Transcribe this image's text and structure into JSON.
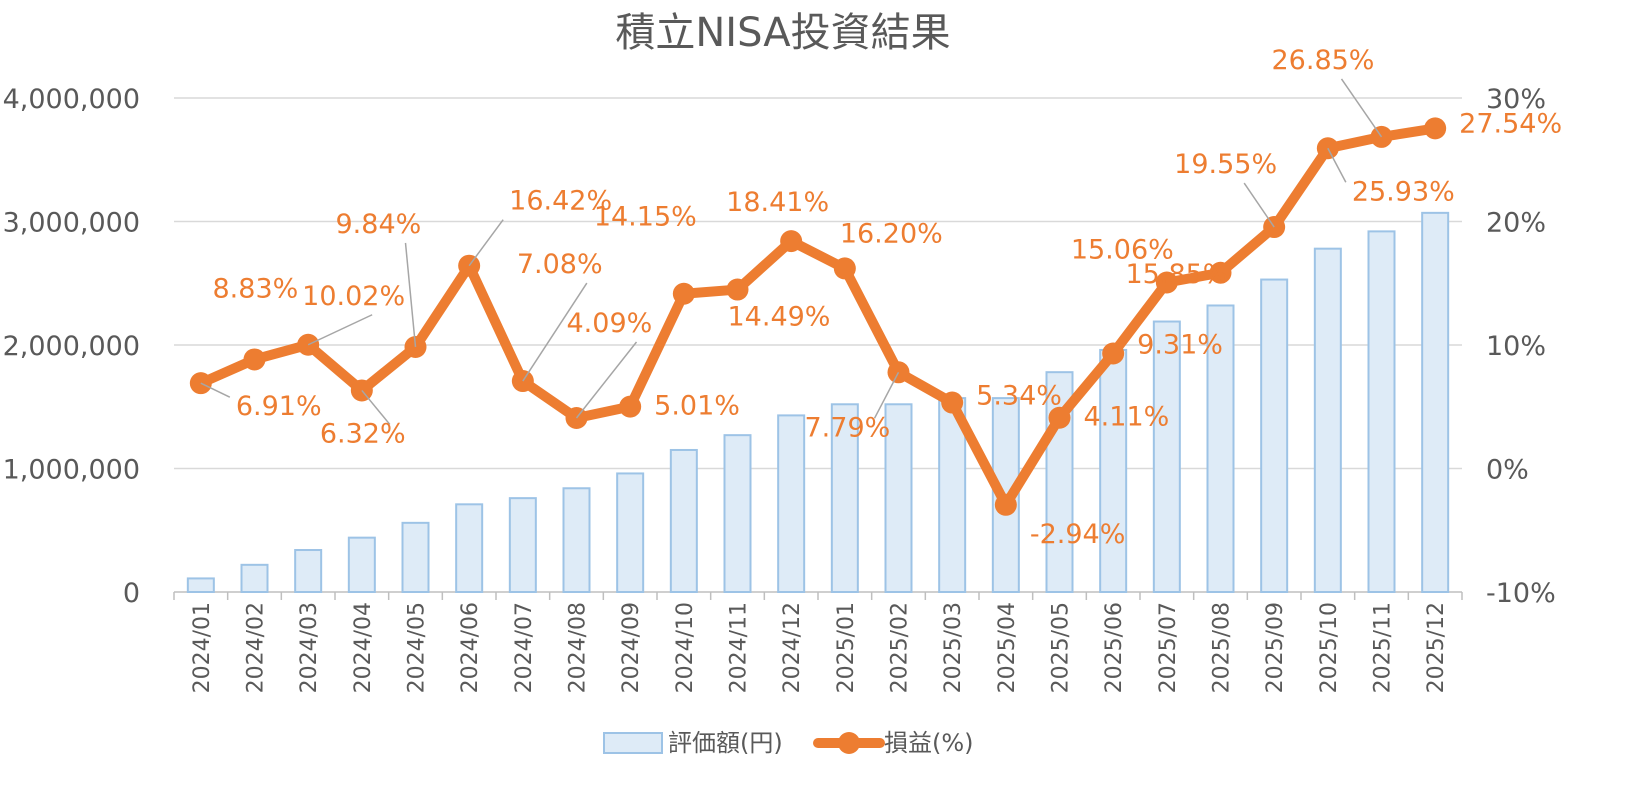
{
  "chart_data": {
    "type": "bar",
    "title": "積立NISA投資結果",
    "categories": [
      "2024/01",
      "2024/02",
      "2024/03",
      "2024/04",
      "2024/05",
      "2024/06",
      "2024/07",
      "2024/08",
      "2024/09",
      "2024/10",
      "2024/11",
      "2024/12",
      "2025/01",
      "2025/02",
      "2025/03",
      "2025/04",
      "2025/05",
      "2025/06",
      "2025/07",
      "2025/08",
      "2025/09",
      "2025/10",
      "2025/11",
      "2025/12"
    ],
    "series": [
      {
        "name": "評価額(円)",
        "type": "bar",
        "axis": "left",
        "color": "#DEEBF7",
        "edge_color": "#9DC3E6",
        "values": [
          110000,
          220000,
          340000,
          440000,
          560000,
          710000,
          760000,
          840000,
          960000,
          1150000,
          1270000,
          1430000,
          1520000,
          1520000,
          1570000,
          1570000,
          1780000,
          1960000,
          2190000,
          2320000,
          2530000,
          2780000,
          2920000,
          3070000
        ]
      },
      {
        "name": "損益(%)",
        "type": "line",
        "axis": "right",
        "color": "#ED7D31",
        "values": [
          6.91,
          8.83,
          10.02,
          6.32,
          9.84,
          16.42,
          7.08,
          4.09,
          5.01,
          14.15,
          14.49,
          18.41,
          16.2,
          7.79,
          5.34,
          -2.94,
          4.11,
          9.31,
          15.06,
          15.85,
          19.55,
          25.93,
          26.85,
          27.54
        ],
        "labels": [
          "6.91%",
          "8.83%",
          "10.02%",
          "6.32%",
          "9.84%",
          "16.42%",
          "7.08%",
          "4.09%",
          "5.01%",
          "14.15%",
          "14.49%",
          "18.41%",
          "16.20%",
          "7.79%",
          "5.34%",
          "-2.94%",
          "4.11%",
          "9.31%",
          "15.06%",
          "15.85%",
          "19.55%",
          "25.93%",
          "26.85%",
          "27.54%"
        ]
      }
    ],
    "y_left": {
      "lim": [
        0,
        4000000
      ],
      "ticks": [
        0,
        1000000,
        2000000,
        3000000,
        4000000
      ],
      "tick_labels": [
        "0",
        "1,000,000",
        "2,000,000",
        "3,000,000",
        "4,000,000"
      ]
    },
    "y_right": {
      "lim": [
        -10,
        30
      ],
      "ticks": [
        -10,
        0,
        10,
        20,
        30
      ],
      "tick_labels": [
        "-10%",
        "0%",
        "10%",
        "20%",
        "30%"
      ]
    },
    "grid": true,
    "legend_position": "bottom"
  }
}
